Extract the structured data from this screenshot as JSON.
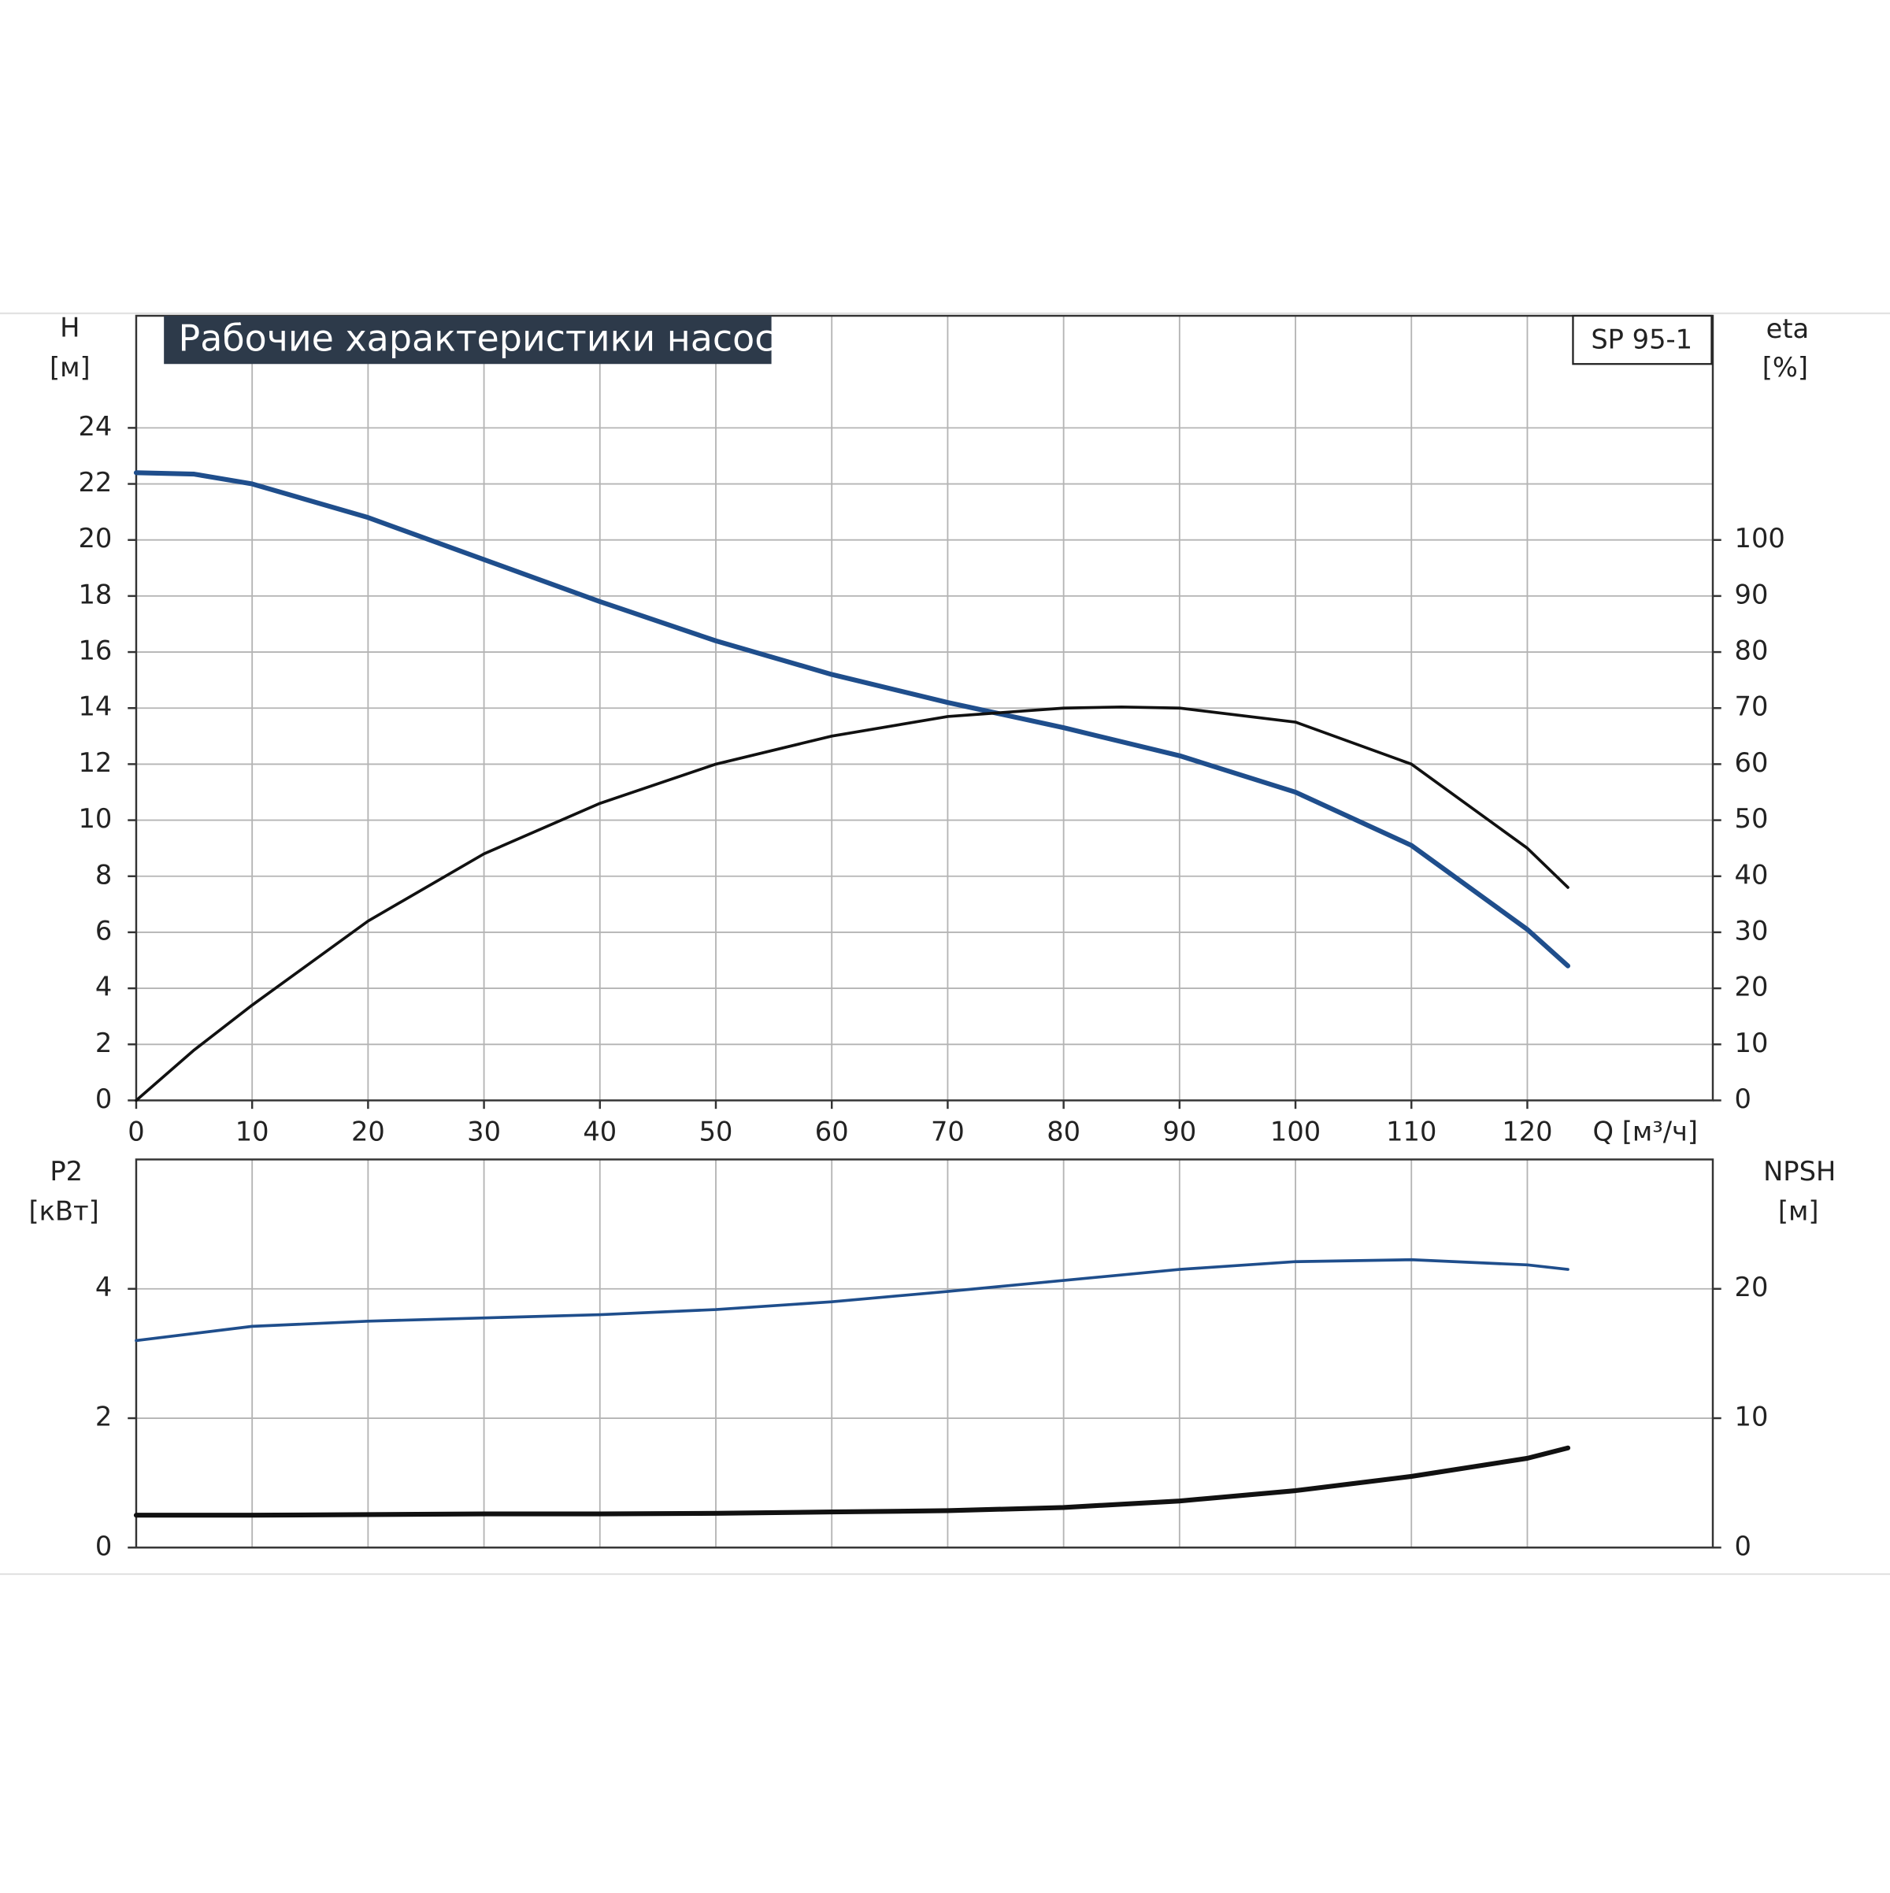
{
  "chart_data": [
    {
      "type": "line",
      "title": "Рабочие характеристики насоса",
      "model": "SP 95-1",
      "x_label": "Q [м³/ч]",
      "y_label": "H",
      "y_unit": "[м]",
      "y2_label": "eta",
      "y2_unit": "[%]",
      "x": [
        0,
        5,
        10,
        20,
        30,
        40,
        50,
        60,
        70,
        80,
        85,
        90,
        100,
        110,
        120,
        123.5
      ],
      "xlim": [
        0,
        136
      ],
      "xticks": [
        0,
        10,
        20,
        30,
        40,
        50,
        60,
        70,
        80,
        90,
        100,
        110,
        120
      ],
      "ylim": [
        0,
        28
      ],
      "yticks": [
        0,
        2,
        4,
        6,
        8,
        10,
        12,
        14,
        16,
        18,
        20,
        22,
        24
      ],
      "y2lim": [
        0,
        140
      ],
      "y2ticks": [
        0,
        10,
        20,
        30,
        40,
        50,
        60,
        70,
        80,
        90,
        100
      ],
      "grid": true,
      "series": [
        {
          "name": "H",
          "color": "#1f4e8c",
          "values": [
            22.4,
            22.35,
            22.0,
            20.8,
            19.3,
            17.8,
            16.4,
            15.2,
            14.2,
            13.3,
            12.8,
            12.3,
            11.0,
            9.1,
            6.1,
            4.8
          ]
        },
        {
          "name": "eta",
          "color": "#111111",
          "axis": "y2",
          "values": [
            0,
            9,
            17,
            32,
            44,
            53,
            60,
            65,
            68.5,
            70,
            70.2,
            70,
            67.5,
            60,
            45,
            38
          ]
        }
      ]
    },
    {
      "type": "line",
      "y_label": "P2",
      "y_unit": "[кВт]",
      "y2_label": "NPSH",
      "y2_unit": "[м]",
      "x": [
        0,
        10,
        20,
        30,
        40,
        50,
        60,
        70,
        80,
        90,
        100,
        110,
        120,
        123.5
      ],
      "xlim": [
        0,
        136
      ],
      "ylim": [
        0,
        6
      ],
      "yticks": [
        0,
        2,
        4
      ],
      "y2lim": [
        0,
        30
      ],
      "y2ticks": [
        0,
        10,
        20
      ],
      "grid": true,
      "series": [
        {
          "name": "P2",
          "color": "#1f4e8c",
          "values": [
            3.2,
            3.42,
            3.5,
            3.55,
            3.6,
            3.68,
            3.8,
            3.96,
            4.13,
            4.3,
            4.42,
            4.45,
            4.37,
            4.3
          ]
        },
        {
          "name": "NPSH",
          "color": "#111111",
          "axis": "y2",
          "values": [
            2.5,
            2.5,
            2.55,
            2.6,
            2.6,
            2.65,
            2.75,
            2.85,
            3.1,
            3.6,
            4.4,
            5.5,
            6.9,
            7.7
          ]
        }
      ]
    }
  ]
}
